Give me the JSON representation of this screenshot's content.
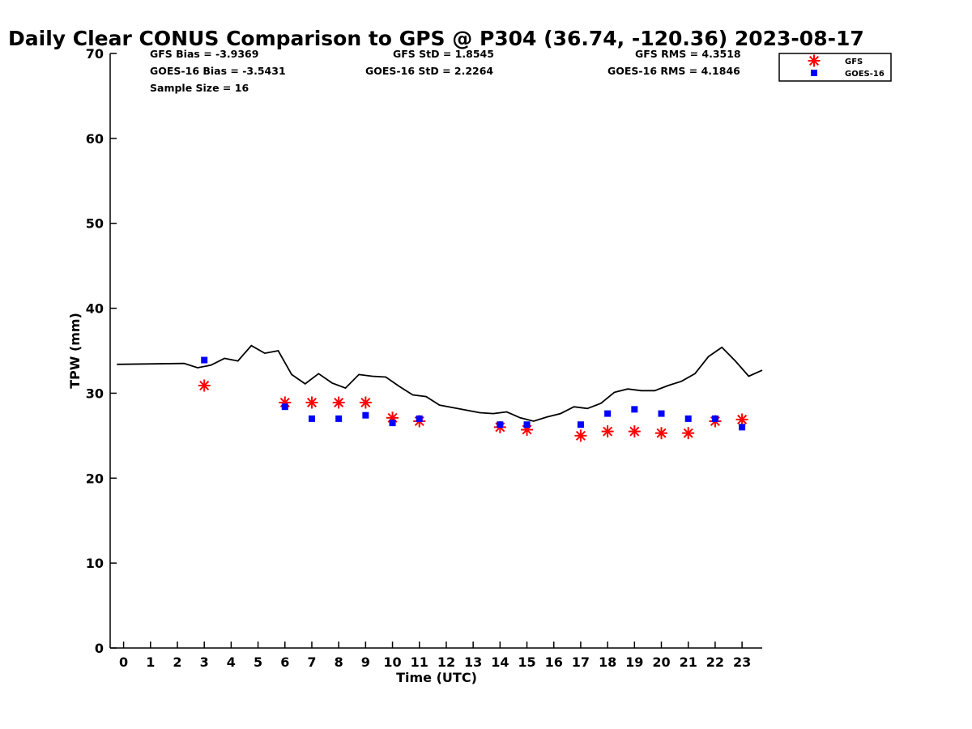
{
  "chart_data": {
    "type": "scatter",
    "title": "Daily Clear CONUS Comparison to GPS @ P304 (36.74, -120.36) 2023-08-17",
    "xlabel": "Time (UTC)",
    "ylabel": "TPW (mm)",
    "xlim": [
      -0.5,
      23.75
    ],
    "ylim": [
      0,
      70
    ],
    "x_ticks": [
      "0",
      "1",
      "2",
      "3",
      "4",
      "5",
      "6",
      "7",
      "8",
      "9",
      "10",
      "11",
      "12",
      "13",
      "14",
      "15",
      "16",
      "17",
      "18",
      "19",
      "20",
      "21",
      "22",
      "23"
    ],
    "y_ticks": [
      "0",
      "10",
      "20",
      "30",
      "40",
      "50",
      "60",
      "70"
    ],
    "grid": false,
    "legend_position": "top-right",
    "stats": {
      "gfs_bias": "GFS Bias = -3.9369",
      "goes_bias": "GOES-16 Bias = -3.5431",
      "sample_size": "Sample Size = 16",
      "gfs_std": "GFS StD = 1.8545",
      "goes_std": "GOES-16 StD = 2.2264",
      "gfs_rms": "GFS RMS = 4.3518",
      "goes_rms": "GOES-16 RMS = 4.1846"
    },
    "series": [
      {
        "type": "line",
        "color": "#000000",
        "x": [
          -0.25,
          2.25,
          2.75,
          3.25,
          3.75,
          4.25,
          4.75,
          5.25,
          5.75,
          6.25,
          6.75,
          7.25,
          7.75,
          8.25,
          8.75,
          9.25,
          9.75,
          10.25,
          10.75,
          11.25,
          11.75,
          12.25,
          12.75,
          13.25,
          13.75,
          14.25,
          14.75,
          15.25,
          15.75,
          16.25,
          16.75,
          17.25,
          17.75,
          18.25,
          18.75,
          19.25,
          19.75,
          20.25,
          20.75,
          21.25,
          21.75,
          22.25,
          22.75,
          23.25,
          23.75
        ],
        "y": [
          33.4,
          33.5,
          33.0,
          33.3,
          34.1,
          33.8,
          35.6,
          34.7,
          35.0,
          32.2,
          31.1,
          32.3,
          31.2,
          30.6,
          32.2,
          32.0,
          31.9,
          30.8,
          29.8,
          29.6,
          28.6,
          28.3,
          28.0,
          27.7,
          27.6,
          27.8,
          27.1,
          26.7,
          27.2,
          27.6,
          28.4,
          28.2,
          28.8,
          30.1,
          30.5,
          30.3,
          30.3,
          30.9,
          31.4,
          32.3,
          34.3,
          35.4,
          33.8,
          32.0,
          32.7
        ]
      },
      {
        "name": "GFS",
        "type": "scatter",
        "marker": "asterisk",
        "color": "#ff0000",
        "x": [
          3,
          6,
          7,
          8,
          9,
          10,
          11,
          14,
          15,
          17,
          18,
          19,
          20,
          21,
          22,
          23
        ],
        "y": [
          30.9,
          28.9,
          28.9,
          28.9,
          28.9,
          27.1,
          26.7,
          26.0,
          25.7,
          25.0,
          25.5,
          25.5,
          25.3,
          25.3,
          26.7,
          26.9
        ]
      },
      {
        "name": "GOES-16",
        "type": "scatter",
        "marker": "square",
        "color": "#0000ff",
        "x": [
          3,
          6,
          7,
          8,
          9,
          10,
          11,
          14,
          15,
          17,
          18,
          19,
          20,
          21,
          22,
          23
        ],
        "y": [
          33.9,
          28.4,
          27.0,
          27.0,
          27.4,
          26.5,
          27.0,
          26.3,
          26.3,
          26.3,
          27.6,
          28.1,
          27.6,
          27.0,
          27.0,
          26.0
        ]
      }
    ]
  }
}
